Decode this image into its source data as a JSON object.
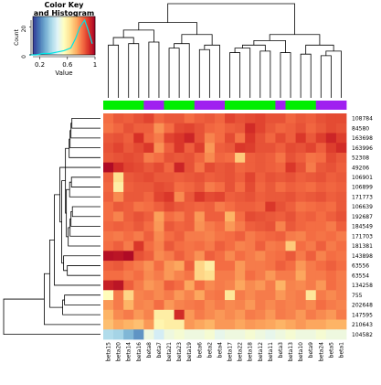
{
  "chart_data": {
    "type": "heatmap",
    "title": "Color Key\nand Histogram",
    "color_key": {
      "xlabel": "Value",
      "ylabel": "Count",
      "x_ticks": [
        "0.2",
        "0.6",
        "1"
      ],
      "y_ticks": [
        "0",
        "20"
      ],
      "colors": [
        "#313695",
        "#4575b4",
        "#74add1",
        "#abd9e9",
        "#e0f3f8",
        "#ffffbf",
        "#fee090",
        "#fdae61",
        "#f46d43",
        "#d73027",
        "#a50026"
      ],
      "histogram_color": "#00e5e5",
      "histogram": [
        {
          "x": 0.05,
          "count": 0
        },
        {
          "x": 0.15,
          "count": 0
        },
        {
          "x": 0.25,
          "count": 1
        },
        {
          "x": 0.35,
          "count": 1
        },
        {
          "x": 0.45,
          "count": 2
        },
        {
          "x": 0.55,
          "count": 3
        },
        {
          "x": 0.65,
          "count": 5
        },
        {
          "x": 0.72,
          "count": 12
        },
        {
          "x": 0.78,
          "count": 20
        },
        {
          "x": 0.85,
          "count": 25
        },
        {
          "x": 0.9,
          "count": 18
        },
        {
          "x": 0.96,
          "count": 8
        }
      ]
    },
    "columns": [
      "beta15",
      "beta20",
      "beta14",
      "beta16",
      "beta8",
      "beta7",
      "beta21",
      "beta23",
      "beta19",
      "beta6",
      "beta2",
      "beta4",
      "beta17",
      "beta22",
      "beta18",
      "beta12",
      "beta11",
      "beta3",
      "beta13",
      "beta10",
      "beta9",
      "beta24",
      "beta5",
      "beta1"
    ],
    "column_groups": [
      "g",
      "g",
      "g",
      "g",
      "p",
      "p",
      "g",
      "g",
      "g",
      "p",
      "p",
      "p",
      "g",
      "g",
      "g",
      "g",
      "g",
      "p",
      "g",
      "g",
      "g",
      "p",
      "p",
      "p"
    ],
    "group_colors": {
      "g": "#00ee00",
      "p": "#a020f0"
    },
    "rows": [
      "108784",
      "84580",
      "163698",
      "163996",
      "52308",
      "49206",
      "106901",
      "106899",
      "171773",
      "106639",
      "192687",
      "184549",
      "171703",
      "181381",
      "143898",
      "63556",
      "63554",
      "134258",
      "755",
      "202648",
      "147595",
      "210643",
      "104582"
    ],
    "values": [
      [
        0.82,
        0.85,
        0.84,
        0.86,
        0.88,
        0.83,
        0.85,
        0.85,
        0.82,
        0.84,
        0.85,
        0.83,
        0.88,
        0.86,
        0.87,
        0.88,
        0.86,
        0.86,
        0.83,
        0.85,
        0.84,
        0.86,
        0.87,
        0.87
      ],
      [
        0.81,
        0.83,
        0.86,
        0.84,
        0.84,
        0.77,
        0.82,
        0.87,
        0.88,
        0.86,
        0.83,
        0.82,
        0.84,
        0.85,
        0.92,
        0.88,
        0.85,
        0.83,
        0.84,
        0.86,
        0.83,
        0.85,
        0.87,
        0.86
      ],
      [
        0.85,
        0.86,
        0.84,
        0.91,
        0.83,
        0.8,
        0.88,
        0.9,
        0.93,
        0.86,
        0.79,
        0.82,
        0.87,
        0.81,
        0.9,
        0.86,
        0.83,
        0.87,
        0.84,
        0.9,
        0.85,
        0.89,
        0.93,
        0.89
      ],
      [
        0.86,
        0.88,
        0.85,
        0.87,
        0.9,
        0.77,
        0.84,
        0.9,
        0.84,
        0.89,
        0.76,
        0.84,
        0.85,
        0.9,
        0.89,
        0.86,
        0.86,
        0.84,
        0.87,
        0.86,
        0.88,
        0.84,
        0.89,
        0.92
      ],
      [
        0.85,
        0.86,
        0.87,
        0.86,
        0.8,
        0.82,
        0.86,
        0.85,
        0.86,
        0.83,
        0.78,
        0.83,
        0.82,
        0.68,
        0.84,
        0.85,
        0.84,
        0.81,
        0.86,
        0.84,
        0.81,
        0.82,
        0.87,
        0.85
      ],
      [
        0.98,
        0.92,
        0.88,
        0.87,
        0.85,
        0.87,
        0.83,
        0.93,
        0.86,
        0.81,
        0.87,
        0.85,
        0.86,
        0.83,
        0.84,
        0.85,
        0.84,
        0.83,
        0.9,
        0.86,
        0.8,
        0.85,
        0.86,
        0.84
      ],
      [
        0.84,
        0.64,
        0.85,
        0.86,
        0.87,
        0.85,
        0.85,
        0.84,
        0.85,
        0.86,
        0.84,
        0.85,
        0.86,
        0.84,
        0.88,
        0.84,
        0.86,
        0.85,
        0.86,
        0.84,
        0.85,
        0.86,
        0.84,
        0.85
      ],
      [
        0.83,
        0.6,
        0.84,
        0.85,
        0.85,
        0.87,
        0.86,
        0.82,
        0.83,
        0.85,
        0.8,
        0.82,
        0.86,
        0.82,
        0.87,
        0.83,
        0.85,
        0.82,
        0.84,
        0.83,
        0.82,
        0.84,
        0.83,
        0.84
      ],
      [
        0.84,
        0.78,
        0.85,
        0.85,
        0.83,
        0.88,
        0.9,
        0.78,
        0.85,
        0.9,
        0.87,
        0.88,
        0.84,
        0.85,
        0.86,
        0.84,
        0.85,
        0.85,
        0.86,
        0.84,
        0.85,
        0.86,
        0.84,
        0.85
      ],
      [
        0.82,
        0.85,
        0.84,
        0.81,
        0.82,
        0.84,
        0.87,
        0.85,
        0.84,
        0.83,
        0.84,
        0.8,
        0.82,
        0.84,
        0.84,
        0.83,
        0.9,
        0.86,
        0.84,
        0.81,
        0.82,
        0.83,
        0.82,
        0.85
      ],
      [
        0.82,
        0.79,
        0.84,
        0.86,
        0.84,
        0.75,
        0.82,
        0.8,
        0.84,
        0.76,
        0.84,
        0.84,
        0.72,
        0.82,
        0.87,
        0.86,
        0.85,
        0.84,
        0.86,
        0.83,
        0.84,
        0.82,
        0.84,
        0.86
      ],
      [
        0.83,
        0.84,
        0.83,
        0.85,
        0.82,
        0.76,
        0.85,
        0.83,
        0.84,
        0.77,
        0.8,
        0.82,
        0.76,
        0.8,
        0.84,
        0.85,
        0.86,
        0.79,
        0.85,
        0.83,
        0.82,
        0.82,
        0.8,
        0.84
      ],
      [
        0.81,
        0.8,
        0.82,
        0.8,
        0.84,
        0.78,
        0.82,
        0.84,
        0.8,
        0.8,
        0.79,
        0.81,
        0.82,
        0.84,
        0.8,
        0.82,
        0.83,
        0.84,
        0.8,
        0.79,
        0.82,
        0.81,
        0.82,
        0.8
      ],
      [
        0.82,
        0.84,
        0.8,
        0.9,
        0.82,
        0.79,
        0.85,
        0.82,
        0.81,
        0.82,
        0.8,
        0.84,
        0.82,
        0.79,
        0.8,
        0.84,
        0.8,
        0.81,
        0.68,
        0.82,
        0.8,
        0.84,
        0.8,
        0.82
      ],
      [
        0.97,
        0.96,
        0.98,
        0.86,
        0.84,
        0.78,
        0.8,
        0.84,
        0.81,
        0.77,
        0.84,
        0.82,
        0.78,
        0.82,
        0.8,
        0.78,
        0.81,
        0.82,
        0.85,
        0.8,
        0.84,
        0.79,
        0.82,
        0.81
      ],
      [
        0.84,
        0.85,
        0.82,
        0.8,
        0.77,
        0.82,
        0.76,
        0.74,
        0.84,
        0.66,
        0.6,
        0.82,
        0.82,
        0.76,
        0.8,
        0.8,
        0.81,
        0.84,
        0.82,
        0.76,
        0.8,
        0.82,
        0.84,
        0.82
      ],
      [
        0.82,
        0.82,
        0.8,
        0.82,
        0.78,
        0.8,
        0.76,
        0.79,
        0.81,
        0.66,
        0.64,
        0.8,
        0.8,
        0.76,
        0.82,
        0.8,
        0.76,
        0.8,
        0.8,
        0.74,
        0.8,
        0.8,
        0.82,
        0.8
      ],
      [
        0.94,
        0.96,
        0.84,
        0.8,
        0.76,
        0.78,
        0.84,
        0.82,
        0.74,
        0.82,
        0.78,
        0.8,
        0.79,
        0.74,
        0.78,
        0.76,
        0.8,
        0.72,
        0.79,
        0.78,
        0.8,
        0.76,
        0.82,
        0.8
      ],
      [
        0.56,
        0.8,
        0.66,
        0.79,
        0.8,
        0.78,
        0.8,
        0.76,
        0.79,
        0.74,
        0.8,
        0.81,
        0.62,
        0.8,
        0.78,
        0.8,
        0.8,
        0.76,
        0.79,
        0.8,
        0.62,
        0.8,
        0.78,
        0.8
      ],
      [
        0.76,
        0.8,
        0.72,
        0.79,
        0.78,
        0.82,
        0.76,
        0.79,
        0.8,
        0.81,
        0.78,
        0.8,
        0.78,
        0.79,
        0.76,
        0.8,
        0.78,
        0.8,
        0.79,
        0.8,
        0.78,
        0.82,
        0.8,
        0.79
      ],
      [
        0.72,
        0.78,
        0.8,
        0.76,
        0.79,
        0.6,
        0.6,
        0.92,
        0.76,
        0.8,
        0.78,
        0.76,
        0.78,
        0.76,
        0.8,
        0.79,
        0.76,
        0.8,
        0.79,
        0.76,
        0.8,
        0.78,
        0.76,
        0.8
      ],
      [
        0.7,
        0.74,
        0.72,
        0.7,
        0.76,
        0.58,
        0.6,
        0.6,
        0.76,
        0.74,
        0.72,
        0.76,
        0.76,
        0.74,
        0.76,
        0.75,
        0.74,
        0.72,
        0.74,
        0.76,
        0.74,
        0.74,
        0.72,
        0.72
      ],
      [
        0.38,
        0.36,
        0.3,
        0.24,
        0.5,
        0.44,
        0.5,
        0.52,
        0.5,
        0.5,
        0.52,
        0.48,
        0.5,
        0.5,
        0.52,
        0.5,
        0.48,
        0.5,
        0.52,
        0.5,
        0.5,
        0.52,
        0.5,
        0.5
      ]
    ],
    "value_range": [
      0.1,
      1.0
    ],
    "row_dendrogram": {
      "merges": [
        [
          -1,
          -2
        ],
        [
          1,
          -3
        ],
        [
          2,
          -4
        ],
        [
          3,
          -5
        ],
        [
          -7,
          -8
        ],
        [
          5,
          -9
        ],
        [
          -10,
          -11
        ],
        [
          7,
          -12
        ],
        [
          8,
          -13
        ],
        [
          9,
          -14
        ],
        [
          6,
          10
        ],
        [
          4,
          11
        ],
        [
          -16,
          -17
        ],
        [
          13,
          -15
        ],
        [
          12,
          14
        ],
        [
          -6,
          15
        ],
        [
          16,
          -18
        ],
        [
          -19,
          -20
        ],
        [
          18,
          -21
        ],
        [
          17,
          19
        ],
        [
          20,
          -22
        ],
        [
          21,
          -23
        ]
      ],
      "heights": [
        0.62,
        0.64,
        0.66,
        0.68,
        0.63,
        0.67,
        0.61,
        0.64,
        0.66,
        0.7,
        0.74,
        0.76,
        0.72,
        0.8,
        0.84,
        0.88,
        1.0,
        0.78,
        0.82,
        1.1,
        1.22,
        2.1
      ]
    },
    "col_dendrogram": {
      "merges": [
        [
          -1,
          -2
        ],
        [
          -3,
          -4
        ],
        [
          1,
          2
        ],
        [
          -5,
          -6
        ],
        [
          3,
          4
        ],
        [
          -7,
          -8
        ],
        [
          6,
          -9
        ],
        [
          -10,
          -11
        ],
        [
          8,
          -12
        ],
        [
          7,
          9
        ],
        [
          5,
          10
        ],
        [
          -13,
          -14
        ],
        [
          12,
          -15
        ],
        [
          -16,
          -17
        ],
        [
          13,
          14
        ],
        [
          -18,
          -19
        ],
        [
          15,
          16
        ],
        [
          -20,
          -21
        ],
        [
          -22,
          -23
        ],
        [
          19,
          -24
        ],
        [
          18,
          20
        ],
        [
          17,
          21
        ],
        [
          11,
          22
        ]
      ],
      "heights": [
        0.7,
        0.72,
        0.8,
        0.74,
        0.9,
        0.66,
        0.72,
        0.64,
        0.7,
        0.84,
        1.0,
        0.6,
        0.66,
        0.62,
        0.7,
        0.6,
        0.76,
        0.58,
        0.56,
        0.62,
        0.7,
        0.84,
        1.25
      ]
    }
  }
}
